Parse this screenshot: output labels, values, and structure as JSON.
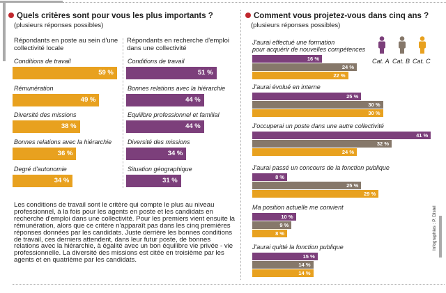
{
  "colors": {
    "accent_bullet": "#c0272d",
    "orange": "#e8a11f",
    "purple": "#7c3f7b",
    "brown": "#86786a"
  },
  "left": {
    "title": "Quels critères sont pour vous les plus importants ?",
    "subtitle": "(plusieurs réponses possibles)",
    "credit": "Infographies : P. Distel"
  },
  "chart_data": [
    {
      "type": "bar",
      "title": "Répondants en poste au sein d'une collectivité locale",
      "categories": [
        "Conditions de travail",
        "Rémunération",
        "Diversité des missions",
        "Bonnes relations avec la hiérarchie",
        "Degré d'autonomie"
      ],
      "values": [
        59,
        49,
        38,
        36,
        34
      ],
      "value_suffix": " %",
      "orientation": "horizontal",
      "color": "#e8a11f"
    },
    {
      "type": "bar",
      "title": "Répondants en recherche d'emploi dans une collectivité",
      "categories": [
        "Conditions de travail",
        "Bonnes relations avec la hiérarchie",
        "Equilibre professionnel et familial",
        "Diversité des missions",
        "Situation géographique"
      ],
      "values": [
        51,
        44,
        44,
        34,
        31
      ],
      "value_suffix": " %",
      "orientation": "horizontal",
      "color": "#7c3f7b"
    },
    {
      "type": "bar",
      "title": "Comment vous projetez-vous dans cinq ans ?",
      "subtitle": "(plusieurs réponses possibles)",
      "orientation": "horizontal",
      "value_suffix": " %",
      "legend_position": "top-right",
      "categories": [
        "J'aurai effectué une formation\npour acquérir de nouvelles compétences",
        "J'aurai évolué en interne",
        "J'occuperai un poste dans une autre collectivité",
        "J'aurai passé un concours de la fonction publique",
        "Ma position actuelle me convient",
        "J'aurai quitté la fonction publique"
      ],
      "series": [
        {
          "name": "Cat. A",
          "color": "#7c3f7b",
          "values": [
            16,
            25,
            41,
            8,
            10,
            15
          ]
        },
        {
          "name": "Cat. B",
          "color": "#86786a",
          "values": [
            24,
            30,
            32,
            25,
            9,
            14
          ]
        },
        {
          "name": "Cat. C",
          "color": "#e8a11f",
          "values": [
            22,
            30,
            24,
            29,
            8,
            14
          ]
        }
      ]
    }
  ],
  "paragraph": "Les conditions de travail sont le critère qui compte le plus au niveau professionnel, à la fois pour les agents en poste et les candidats en recherche d'emploi dans une collectivité. Pour les premiers vient ensuite la rémunération, alors que ce critère n'apparaît pas dans les cinq premières réponses données par les candidats. Juste derrière les bonnes conditions de travail, ces derniers attendent, dans leur futur poste, de bonnes relations avec la hiérarchie, à égalité avec un bon équilibre vie privée - vie professionnelle. La diversité des missions est citée en troisième par les agents et en quatrième par les candidats."
}
